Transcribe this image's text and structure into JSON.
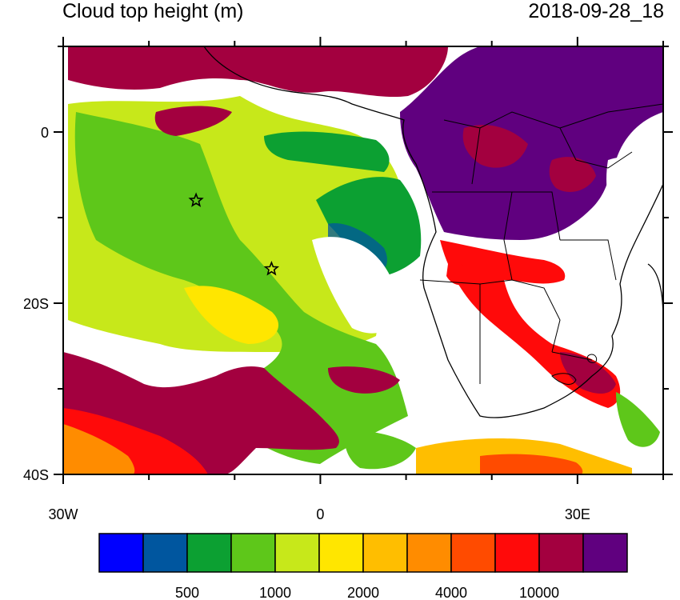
{
  "title_left": "Cloud top height (m)",
  "title_right": "2018-09-28_18",
  "map": {
    "lon_range": [
      -30,
      40
    ],
    "lat_range": [
      -40,
      10
    ],
    "lat_ticks": [
      {
        "value": 0,
        "label": "0"
      },
      {
        "value": -20,
        "label": "20S"
      },
      {
        "value": -40,
        "label": "40S"
      }
    ],
    "lon_ticks": [
      {
        "value": -30,
        "label": "30W"
      },
      {
        "value": 0,
        "label": "0"
      },
      {
        "value": 30,
        "label": "30E"
      }
    ],
    "markers": [
      {
        "name": "star-marker-1",
        "lon": -14.5,
        "lat": -8
      },
      {
        "name": "star-marker-2",
        "lon": -5.7,
        "lat": -16
      }
    ]
  },
  "colorbar": {
    "colors": [
      "#0000ff",
      "#00569f",
      "#0ca032",
      "#5ec71a",
      "#c7e81a",
      "#ffe600",
      "#ffbe00",
      "#ff8c00",
      "#ff4b00",
      "#ff0a0a",
      "#a3003f",
      "#60007f"
    ],
    "labels": [
      {
        "text": "500",
        "boundary": 2
      },
      {
        "text": "1000",
        "boundary": 4
      },
      {
        "text": "2000",
        "boundary": 6
      },
      {
        "text": "4000",
        "boundary": 8
      },
      {
        "text": "10000",
        "boundary": 10
      }
    ]
  }
}
